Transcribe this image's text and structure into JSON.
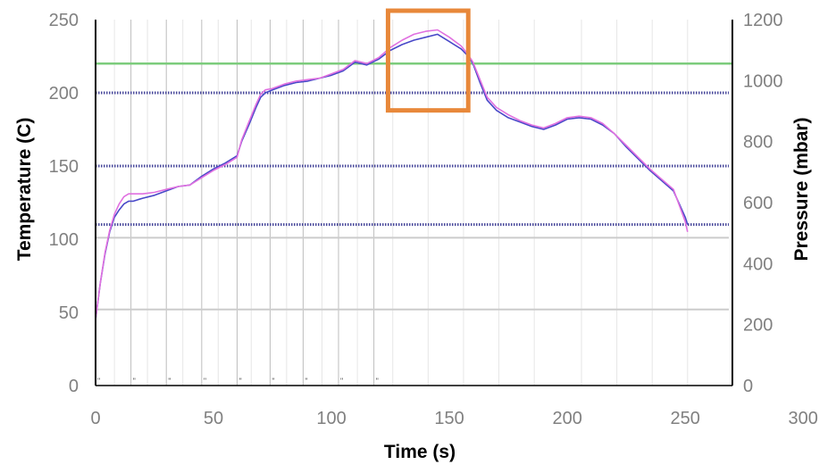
{
  "chart_data": {
    "type": "line",
    "title": "",
    "xlabel": "Time (s)",
    "ylabel": "Temperature (C)",
    "y2label": "Pressure (mbar)",
    "xlim": [
      0,
      270
    ],
    "ylim": [
      0,
      250
    ],
    "y2lim": [
      0,
      1200
    ],
    "x_ticks": [
      0,
      50,
      100,
      150,
      200,
      250,
      300
    ],
    "y_ticks": [
      0,
      50,
      100,
      150,
      200,
      250
    ],
    "y2_ticks": [
      0,
      200,
      400,
      600,
      800,
      1000,
      1200
    ],
    "grid": "vertical event lines and horizontal reference lines",
    "event_times": [
      15,
      30,
      45,
      60,
      74,
      88,
      103,
      118
    ],
    "event_marker_label": "\"",
    "vertical_gridlines": [
      8,
      22,
      37,
      52,
      66,
      81,
      96,
      111,
      126,
      141,
      156,
      171,
      186,
      206,
      221,
      236,
      251
    ],
    "reference_lines": [
      {
        "axis": "temperature",
        "value": 220,
        "color": "#7ccc7c",
        "style": "solid"
      },
      {
        "axis": "temperature",
        "value": 200,
        "color": "#4a4a9c",
        "style": "dotted"
      },
      {
        "axis": "temperature",
        "value": 150,
        "color": "#4a4a9c",
        "style": "dotted"
      },
      {
        "axis": "temperature",
        "value": 110,
        "color": "#4a4a9c",
        "style": "dotted"
      },
      {
        "axis": "temperature",
        "value": 101,
        "color": "#cccccc",
        "style": "solid"
      },
      {
        "axis": "temperature",
        "value": 52,
        "color": "#cccccc",
        "style": "solid"
      }
    ],
    "highlight_box": {
      "x": [
        124,
        158
      ],
      "y": [
        188,
        250
      ],
      "color": "#e8883a"
    },
    "series": [
      {
        "name": "",
        "color": "#4848c8",
        "x": [
          0,
          2,
          4,
          6,
          8,
          10,
          12,
          14,
          16,
          18,
          20,
          25,
          30,
          35,
          40,
          45,
          50,
          55,
          60,
          62,
          65,
          68,
          70,
          72,
          75,
          80,
          85,
          90,
          95,
          100,
          105,
          110,
          115,
          120,
          125,
          130,
          135,
          140,
          145,
          150,
          155,
          158,
          160,
          163,
          166,
          170,
          175,
          180,
          185,
          190,
          195,
          200,
          205,
          210,
          215,
          220,
          225,
          230,
          235,
          240,
          245,
          250,
          251
        ],
        "y": [
          45,
          70,
          90,
          105,
          115,
          120,
          124,
          126,
          126,
          127,
          128,
          130,
          133,
          136,
          137,
          143,
          148,
          152,
          157,
          167,
          178,
          190,
          197,
          200,
          202,
          205,
          207,
          208,
          210,
          212,
          215,
          221,
          219,
          223,
          229,
          233,
          236,
          238,
          240,
          235,
          230,
          225,
          220,
          207,
          195,
          188,
          183,
          180,
          177,
          175,
          178,
          182,
          183,
          182,
          178,
          172,
          163,
          155,
          147,
          140,
          133,
          115,
          110
        ]
      },
      {
        "name": "",
        "color": "#e070e0",
        "x": [
          0,
          2,
          4,
          6,
          8,
          10,
          12,
          14,
          16,
          18,
          20,
          25,
          30,
          35,
          40,
          45,
          50,
          55,
          60,
          62,
          65,
          68,
          70,
          72,
          75,
          80,
          85,
          90,
          95,
          100,
          105,
          110,
          115,
          120,
          125,
          130,
          135,
          140,
          145,
          150,
          155,
          158,
          160,
          163,
          166,
          170,
          175,
          180,
          185,
          190,
          195,
          200,
          205,
          210,
          215,
          220,
          225,
          230,
          235,
          240,
          245,
          250,
          251
        ],
        "y": [
          45,
          70,
          91,
          106,
          117,
          124,
          129,
          131,
          131,
          131,
          131,
          132,
          134,
          136,
          137,
          142,
          147,
          151,
          156,
          168,
          180,
          192,
          199,
          202,
          203,
          206,
          208,
          209,
          210,
          213,
          216,
          222,
          220,
          224,
          231,
          236,
          240,
          242,
          243,
          238,
          232,
          226,
          221,
          209,
          197,
          190,
          185,
          181,
          178,
          176,
          179,
          183,
          184,
          183,
          179,
          172,
          164,
          156,
          148,
          141,
          134,
          112,
          105
        ]
      }
    ]
  }
}
